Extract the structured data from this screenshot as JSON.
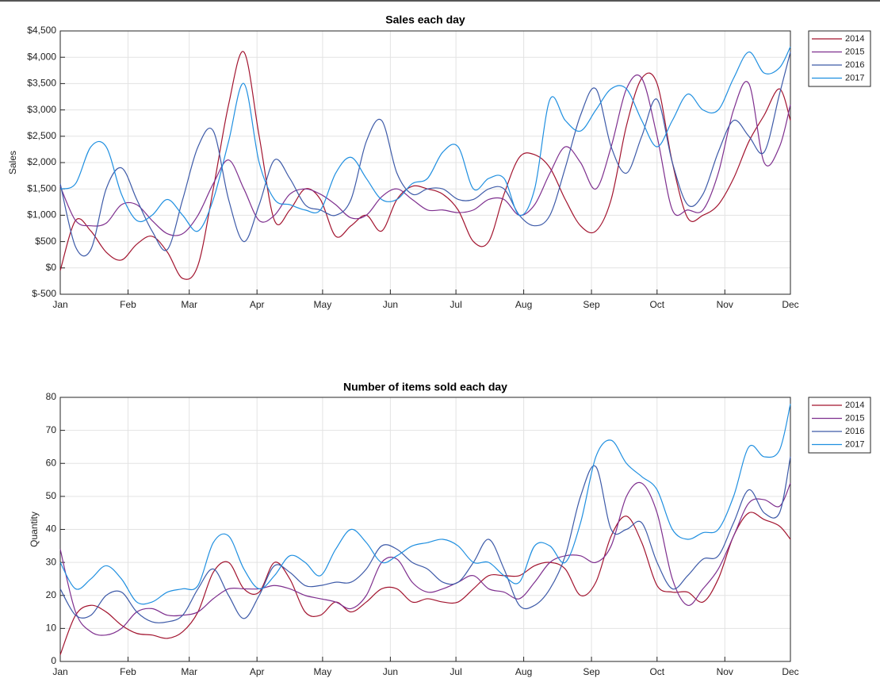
{
  "chart_data": [
    {
      "type": "line",
      "title": "Sales each day",
      "ylabel": "Sales",
      "x": [
        1,
        8,
        15,
        22,
        29,
        36,
        43,
        50,
        57,
        64,
        71,
        78,
        85,
        92,
        99,
        106,
        113,
        120,
        127,
        134,
        141,
        148,
        155,
        162,
        169,
        176,
        183,
        190,
        197,
        204,
        211,
        218,
        225,
        232,
        239,
        246,
        253,
        260,
        267,
        274,
        281,
        288,
        295,
        302,
        309,
        316,
        323,
        330,
        335
      ],
      "xlim": [
        1,
        335
      ],
      "xticks": [
        {
          "value": 1,
          "label": "Jan"
        },
        {
          "value": 32,
          "label": "Feb"
        },
        {
          "value": 60,
          "label": "Mar"
        },
        {
          "value": 91,
          "label": "Apr"
        },
        {
          "value": 121,
          "label": "May"
        },
        {
          "value": 152,
          "label": "Jun"
        },
        {
          "value": 182,
          "label": "Jul"
        },
        {
          "value": 213,
          "label": "Aug"
        },
        {
          "value": 244,
          "label": "Sep"
        },
        {
          "value": 274,
          "label": "Oct"
        },
        {
          "value": 305,
          "label": "Nov"
        },
        {
          "value": 335,
          "label": "Dec"
        }
      ],
      "ylim": [
        -500,
        4500
      ],
      "yticks": [
        {
          "value": -500,
          "label": "$-500"
        },
        {
          "value": 0,
          "label": "$0"
        },
        {
          "value": 500,
          "label": "$500"
        },
        {
          "value": 1000,
          "label": "$1,000"
        },
        {
          "value": 1500,
          "label": "$1,500"
        },
        {
          "value": 2000,
          "label": "$2,000"
        },
        {
          "value": 2500,
          "label": "$2,500"
        },
        {
          "value": 3000,
          "label": "$3,000"
        },
        {
          "value": 3500,
          "label": "$3,500"
        },
        {
          "value": 4000,
          "label": "$4,000"
        },
        {
          "value": 4500,
          "label": "$4,500"
        }
      ],
      "grid": true,
      "legend": "northeastoutside",
      "series": [
        {
          "name": "2014",
          "color": "#a2142f",
          "values": [
            -50,
            900,
            700,
            300,
            150,
            450,
            600,
            300,
            -200,
            50,
            1500,
            3100,
            4100,
            2500,
            900,
            1100,
            1500,
            1300,
            600,
            800,
            1000,
            700,
            1300,
            1550,
            1500,
            1400,
            1100,
            500,
            500,
            1400,
            2100,
            2150,
            1900,
            1300,
            800,
            700,
            1300,
            2700,
            3600,
            3500,
            2000,
            950,
            1000,
            1200,
            1700,
            2400,
            2900,
            3400,
            2800
          ]
        },
        {
          "name": "2015",
          "color": "#7e2f8e",
          "values": [
            1550,
            900,
            800,
            850,
            1200,
            1200,
            900,
            650,
            650,
            1000,
            1600,
            2050,
            1500,
            900,
            1000,
            1400,
            1500,
            1400,
            1200,
            950,
            1000,
            1350,
            1500,
            1300,
            1100,
            1100,
            1050,
            1100,
            1300,
            1300,
            1000,
            1200,
            1800,
            2300,
            2000,
            1500,
            2300,
            3400,
            3600,
            2500,
            1100,
            1100,
            1100,
            1800,
            3000,
            3500,
            2000,
            2300,
            3100
          ]
        },
        {
          "name": "2016",
          "color": "#3d5aa8",
          "values": [
            1600,
            400,
            350,
            1500,
            1900,
            1300,
            700,
            350,
            1300,
            2300,
            2600,
            1300,
            500,
            1200,
            2050,
            1700,
            1200,
            1100,
            1000,
            1300,
            2400,
            2800,
            1800,
            1400,
            1500,
            1500,
            1300,
            1300,
            1500,
            1500,
            1000,
            800,
            1000,
            1900,
            2900,
            3400,
            2300,
            1800,
            2500,
            3200,
            2000,
            1200,
            1400,
            2200,
            2800,
            2500,
            2200,
            3300,
            4100
          ]
        },
        {
          "name": "2017",
          "color": "#1f8fe0",
          "values": [
            1500,
            1600,
            2300,
            2300,
            1400,
            900,
            1000,
            1300,
            1000,
            700,
            1300,
            2400,
            3500,
            2000,
            1300,
            1200,
            1100,
            1100,
            1800,
            2100,
            1700,
            1300,
            1300,
            1600,
            1700,
            2200,
            2300,
            1500,
            1700,
            1700,
            1000,
            1500,
            3200,
            2800,
            2600,
            3000,
            3400,
            3400,
            2800,
            2300,
            2800,
            3300,
            3000,
            3000,
            3600,
            4100,
            3700,
            3800,
            4200
          ]
        }
      ]
    },
    {
      "type": "line",
      "title": "Number of items sold each day",
      "ylabel": "Quantity",
      "x": [
        1,
        8,
        15,
        22,
        29,
        36,
        43,
        50,
        57,
        64,
        71,
        78,
        85,
        92,
        99,
        106,
        113,
        120,
        127,
        134,
        141,
        148,
        155,
        162,
        169,
        176,
        183,
        190,
        197,
        204,
        211,
        218,
        225,
        232,
        239,
        246,
        253,
        260,
        267,
        274,
        281,
        288,
        295,
        302,
        309,
        316,
        323,
        330,
        335
      ],
      "xlim": [
        1,
        335
      ],
      "xticks": [
        {
          "value": 1,
          "label": "Jan"
        },
        {
          "value": 32,
          "label": "Feb"
        },
        {
          "value": 60,
          "label": "Mar"
        },
        {
          "value": 91,
          "label": "Apr"
        },
        {
          "value": 121,
          "label": "May"
        },
        {
          "value": 152,
          "label": "Jun"
        },
        {
          "value": 182,
          "label": "Jul"
        },
        {
          "value": 213,
          "label": "Aug"
        },
        {
          "value": 244,
          "label": "Sep"
        },
        {
          "value": 274,
          "label": "Oct"
        },
        {
          "value": 305,
          "label": "Nov"
        },
        {
          "value": 335,
          "label": "Dec"
        }
      ],
      "ylim": [
        0,
        80
      ],
      "yticks": [
        0,
        10,
        20,
        30,
        40,
        50,
        60,
        70,
        80
      ],
      "grid": true,
      "legend": "northeastoutside",
      "series": [
        {
          "name": "2014",
          "color": "#a2142f",
          "values": [
            2,
            14,
            17,
            15,
            11,
            8.5,
            8,
            7,
            9,
            15,
            27,
            30,
            22,
            21,
            30,
            25,
            15,
            14,
            18,
            15,
            18,
            22,
            22,
            18,
            19,
            18,
            18,
            22,
            26,
            26,
            26,
            29,
            30,
            28,
            20,
            24,
            38,
            44,
            36,
            23,
            21,
            21,
            18,
            25,
            38,
            45,
            43,
            41,
            37
          ]
        },
        {
          "name": "2015",
          "color": "#7e2f8e",
          "values": [
            34,
            15,
            9,
            8,
            10,
            15,
            16,
            14,
            14,
            15,
            19,
            22,
            22,
            22,
            23,
            22,
            20,
            19,
            18,
            16,
            20,
            30,
            31,
            24,
            21,
            22,
            24,
            26,
            22,
            21,
            19,
            24,
            30,
            32,
            32,
            30,
            35,
            50,
            54,
            45,
            25,
            17,
            22,
            28,
            38,
            48,
            49,
            47,
            54
          ]
        },
        {
          "name": "2016",
          "color": "#3d5aa8",
          "values": [
            22,
            14,
            14,
            20,
            21,
            15,
            12,
            12,
            14,
            22,
            28,
            20,
            13,
            20,
            29,
            27,
            23,
            23,
            24,
            24,
            28,
            35,
            34,
            30,
            28,
            24,
            24,
            30,
            37,
            28,
            17,
            17,
            22,
            32,
            50,
            59,
            40,
            40,
            42,
            30,
            22,
            26,
            31,
            32,
            42,
            52,
            45,
            45,
            62
          ]
        },
        {
          "name": "2017",
          "color": "#1f8fe0",
          "values": [
            30,
            22,
            25,
            29,
            25,
            18,
            18,
            21,
            22,
            23,
            36,
            38,
            28,
            22,
            26,
            32,
            30,
            26,
            34,
            40,
            36,
            30,
            32,
            35,
            36,
            37,
            35,
            30,
            30,
            26,
            24,
            35,
            35,
            30,
            42,
            62,
            67,
            60,
            56,
            52,
            40,
            37,
            39,
            40,
            50,
            65,
            62,
            64,
            78
          ]
        }
      ]
    }
  ]
}
